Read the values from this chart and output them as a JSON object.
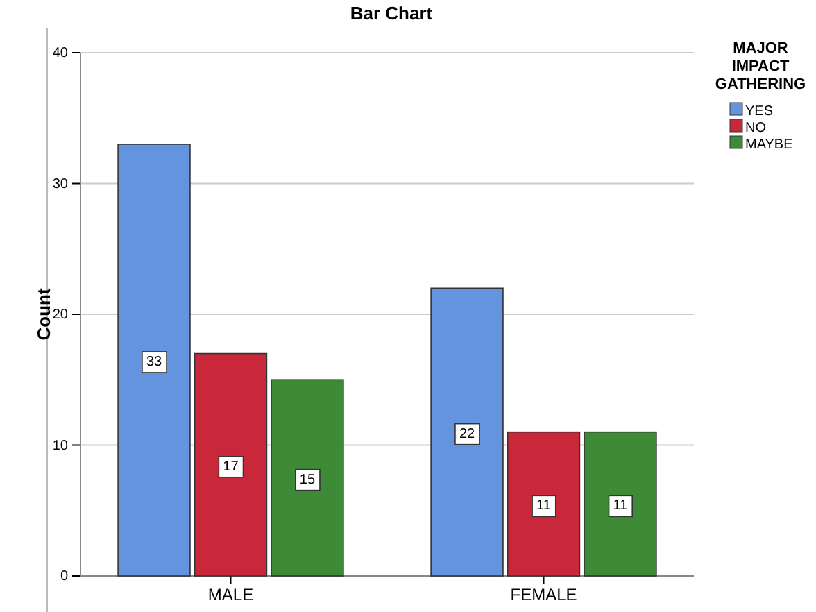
{
  "chart_data": {
    "type": "bar",
    "title": "Bar Chart",
    "ylabel": "Count",
    "legend_title": "MAJOR IMPACT GATHERING",
    "categories": [
      "MALE",
      "FEMALE"
    ],
    "series": [
      {
        "name": "YES",
        "color": "#6494e0",
        "values": [
          33,
          22
        ]
      },
      {
        "name": "NO",
        "color": "#c8283a",
        "values": [
          17,
          11
        ]
      },
      {
        "name": "MAYBE",
        "color": "#3d8a37",
        "values": [
          15,
          11
        ]
      }
    ],
    "ylim": [
      0,
      40
    ],
    "yticks": [
      0,
      10,
      20,
      30,
      40
    ],
    "grid": "y",
    "legend": "top right",
    "data_labels": true
  }
}
